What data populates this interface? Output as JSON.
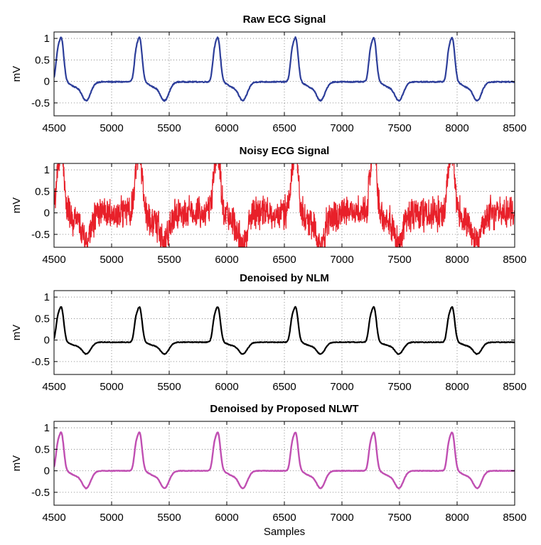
{
  "chart_data": [
    {
      "type": "line",
      "title": "Raw ECG Signal",
      "xlabel": "",
      "ylabel": "mV",
      "xlim": [
        4500,
        8500
      ],
      "ylim": [
        -0.8,
        1.15
      ],
      "xticks": [
        4500,
        5000,
        5500,
        6000,
        6500,
        7000,
        7500,
        8000,
        8500
      ],
      "yticks": [
        -0.5,
        0,
        0.5,
        1
      ],
      "ytick_labels": [
        "-0.5",
        "0",
        "0.5",
        "1"
      ],
      "grid": true,
      "color": "#2d3e9a",
      "line_width": 2.2,
      "noise": 0.012,
      "r_peak_positions": [
        4565,
        5245,
        5925,
        6600,
        7280,
        7960
      ],
      "r_peak_value": 0.97,
      "s_trough_value": -0.43,
      "baseline": -0.01
    },
    {
      "type": "line",
      "title": "Noisy ECG Signal",
      "xlabel": "",
      "ylabel": "mV",
      "xlim": [
        4500,
        8500
      ],
      "ylim": [
        -0.8,
        1.15
      ],
      "xticks": [
        4500,
        5000,
        5500,
        6000,
        6500,
        7000,
        7500,
        8000,
        8500
      ],
      "yticks": [
        -0.5,
        0,
        0.5,
        1
      ],
      "ytick_labels": [
        "-0.5",
        "0",
        "0.5",
        "1"
      ],
      "grid": true,
      "color": "#e8202a",
      "line_width": 1.3,
      "noise": 0.28,
      "r_peak_positions": [
        4565,
        5245,
        5925,
        6600,
        7280,
        7960
      ],
      "r_peak_value": 1.15,
      "s_trough_value": -0.7,
      "baseline": 0.0
    },
    {
      "type": "line",
      "title": "Denoised by NLM",
      "xlabel": "",
      "ylabel": "mV",
      "xlim": [
        4500,
        8500
      ],
      "ylim": [
        -0.8,
        1.15
      ],
      "xticks": [
        4500,
        5000,
        5500,
        6000,
        6500,
        7000,
        7500,
        8000,
        8500
      ],
      "yticks": [
        -0.5,
        0,
        0.5,
        1
      ],
      "ytick_labels": [
        "-0.5",
        "0",
        "0.5",
        "1"
      ],
      "grid": true,
      "color": "#000000",
      "line_width": 2.2,
      "noise": 0.008,
      "r_peak_positions": [
        4565,
        5245,
        5925,
        6600,
        7280,
        7960
      ],
      "r_peak_value": 0.77,
      "s_trough_value": -0.27,
      "baseline": -0.05
    },
    {
      "type": "line",
      "title": "Denoised by Proposed NLWT",
      "xlabel": "Samples",
      "ylabel": "mV",
      "xlim": [
        4500,
        8500
      ],
      "ylim": [
        -0.8,
        1.15
      ],
      "xticks": [
        4500,
        5000,
        5500,
        6000,
        6500,
        7000,
        7500,
        8000,
        8500
      ],
      "yticks": [
        -0.5,
        0,
        0.5,
        1
      ],
      "ytick_labels": [
        "-0.5",
        "0",
        "0.5",
        "1"
      ],
      "grid": true,
      "color": "#c04fb2",
      "line_width": 2.4,
      "noise": 0.006,
      "r_peak_positions": [
        4565,
        5245,
        5925,
        6600,
        7280,
        7960
      ],
      "r_peak_value": 0.84,
      "s_trough_value": -0.4,
      "baseline": 0.0
    }
  ]
}
